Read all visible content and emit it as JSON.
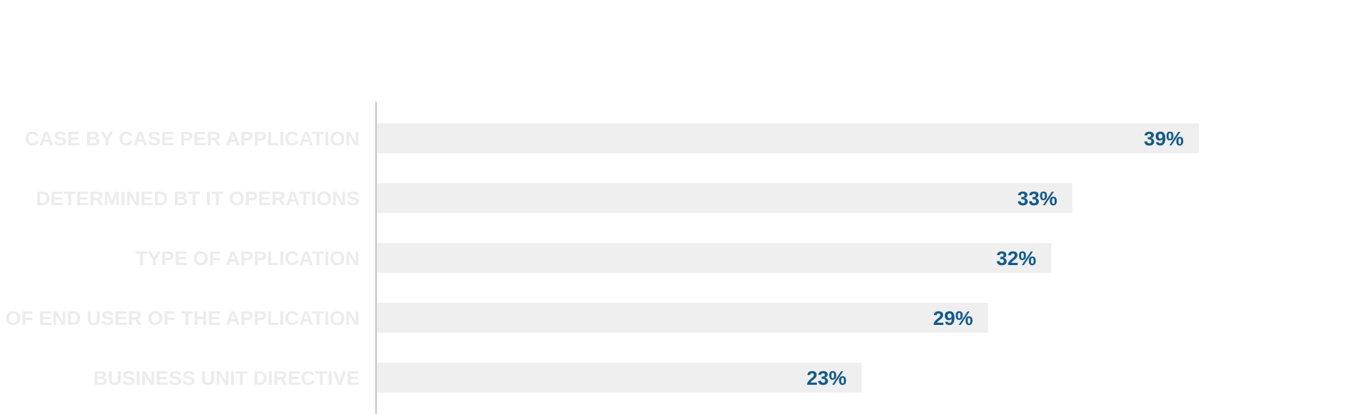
{
  "chart_data": {
    "type": "bar",
    "orientation": "horizontal",
    "categories": [
      "CASE BY CASE PER APPLICATION",
      "DETERMINED BT IT OPERATIONS",
      "TYPE OF APPLICATION",
      "TYPE OF END USER OF THE APPLICATION",
      "BUSINESS UNIT DIRECTIVE"
    ],
    "values": [
      39,
      33,
      32,
      29,
      23
    ],
    "value_labels": [
      "39%",
      "33%",
      "32%",
      "29%",
      "23%"
    ],
    "xlim": [
      0,
      65
    ],
    "grid": false,
    "colors": {
      "bar": "#efefef",
      "value_text": "#135a8a",
      "category_text": "#ececec",
      "axis": "#c4c4c4"
    }
  }
}
